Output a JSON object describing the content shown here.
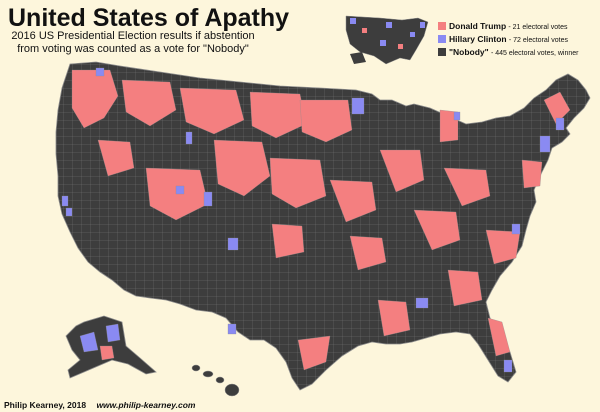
{
  "title": "United States of Apathy",
  "subtitle": "2016 US Presidential Election results if abstention from voting was counted as a vote for \"Nobody\"",
  "legend": [
    {
      "name": "Donald Trump",
      "votes": "- 21 electoral votes",
      "color": "#f47f80"
    },
    {
      "name": "Hillary Clinton",
      "votes": "- 72 electoral votes",
      "color": "#8a8af2"
    },
    {
      "name": "\"Nobody\"",
      "votes": "- 445 electoral votes, winner",
      "color": "#3d3d3d"
    }
  ],
  "colors": {
    "background": "#fdf6dc",
    "nobody": "#3d3d3d",
    "trump": "#f47f80",
    "clinton": "#8a8af2",
    "border": "#8c8c8c"
  },
  "credit": {
    "author": "Philip Kearney, 2018",
    "url": "www.philip-kearney.com"
  }
}
